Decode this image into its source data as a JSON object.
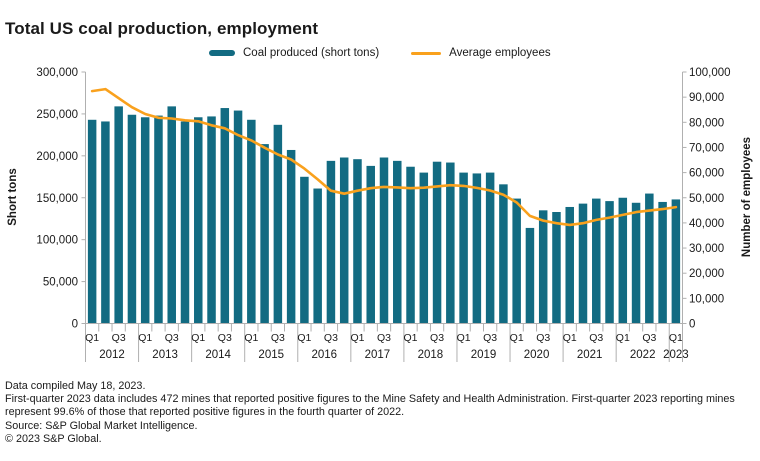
{
  "title": "Total US coal production, employment",
  "colors": {
    "bar": "#126b82",
    "line": "#f9a11d",
    "axis": "#b0b0b0",
    "text": "#1a1a1a"
  },
  "chart_data": {
    "type": "bar",
    "title": "Total US coal production, employment",
    "ylabel_left": "Short tons",
    "ylabel_right": "Number of employees",
    "left_ylim": [
      0,
      300000
    ],
    "right_ylim": [
      0,
      100000
    ],
    "grid": false,
    "legend_position": "top",
    "left_axis_ticks": [
      "0",
      "50,000",
      "100,000",
      "150,000",
      "200,000",
      "250,000",
      "300,000"
    ],
    "right_axis_ticks": [
      "0",
      "10,000",
      "20,000",
      "30,000",
      "40,000",
      "50,000",
      "60,000",
      "70,000",
      "80,000",
      "90,000",
      "100,000"
    ],
    "years": [
      {
        "label": "2012",
        "count": 4,
        "quarters_shown": [
          "Q1",
          "Q3"
        ]
      },
      {
        "label": "2013",
        "count": 4,
        "quarters_shown": [
          "Q1",
          "Q3"
        ]
      },
      {
        "label": "2014",
        "count": 4,
        "quarters_shown": [
          "Q1",
          "Q3"
        ]
      },
      {
        "label": "2015",
        "count": 4,
        "quarters_shown": [
          "Q1",
          "Q3"
        ]
      },
      {
        "label": "2016",
        "count": 4,
        "quarters_shown": [
          "Q1",
          "Q3"
        ]
      },
      {
        "label": "2017",
        "count": 4,
        "quarters_shown": [
          "Q1",
          "Q3"
        ]
      },
      {
        "label": "2018",
        "count": 4,
        "quarters_shown": [
          "Q1",
          "Q3"
        ]
      },
      {
        "label": "2019",
        "count": 4,
        "quarters_shown": [
          "Q1",
          "Q3"
        ]
      },
      {
        "label": "2020",
        "count": 4,
        "quarters_shown": [
          "Q1",
          "Q3"
        ]
      },
      {
        "label": "2021",
        "count": 4,
        "quarters_shown": [
          "Q1",
          "Q3"
        ]
      },
      {
        "label": "2022",
        "count": 4,
        "quarters_shown": [
          "Q1",
          "Q3"
        ]
      },
      {
        "label": "2023",
        "count": 1,
        "quarters_shown": [
          "Q1"
        ]
      }
    ],
    "x": [
      "2012 Q1",
      "2012 Q2",
      "2012 Q3",
      "2012 Q4",
      "2013 Q1",
      "2013 Q2",
      "2013 Q3",
      "2013 Q4",
      "2014 Q1",
      "2014 Q2",
      "2014 Q3",
      "2014 Q4",
      "2015 Q1",
      "2015 Q2",
      "2015 Q3",
      "2015 Q4",
      "2016 Q1",
      "2016 Q2",
      "2016 Q3",
      "2016 Q4",
      "2017 Q1",
      "2017 Q2",
      "2017 Q3",
      "2017 Q4",
      "2018 Q1",
      "2018 Q2",
      "2018 Q3",
      "2018 Q4",
      "2019 Q1",
      "2019 Q2",
      "2019 Q3",
      "2019 Q4",
      "2020 Q1",
      "2020 Q2",
      "2020 Q3",
      "2020 Q4",
      "2021 Q1",
      "2021 Q2",
      "2021 Q3",
      "2021 Q4",
      "2022 Q1",
      "2022 Q2",
      "2022 Q3",
      "2022 Q4",
      "2023 Q1"
    ],
    "series": [
      {
        "name": "Coal produced (short tons)",
        "kind": "bar",
        "axis": "left",
        "values": [
          243000,
          241000,
          259000,
          249000,
          246000,
          248000,
          259000,
          241000,
          246000,
          247000,
          257000,
          254000,
          243000,
          214000,
          237000,
          207000,
          175000,
          161000,
          194000,
          198000,
          196000,
          188000,
          198000,
          194000,
          187000,
          180000,
          193000,
          192000,
          180000,
          179000,
          180000,
          166000,
          149000,
          114000,
          135000,
          133000,
          139000,
          143000,
          149000,
          146000,
          150000,
          144000,
          155000,
          145000,
          148000
        ]
      },
      {
        "name": "Average employees",
        "kind": "line",
        "axis": "right",
        "values": [
          92400,
          93200,
          89600,
          86000,
          83300,
          81800,
          81500,
          80800,
          80400,
          78800,
          77600,
          74900,
          72800,
          69900,
          67200,
          65200,
          61600,
          57300,
          52800,
          51600,
          52800,
          53800,
          54300,
          54100,
          53800,
          54000,
          54500,
          55000,
          54700,
          53900,
          52900,
          51200,
          48100,
          42800,
          40900,
          39900,
          39200,
          39900,
          41200,
          42100,
          43200,
          44300,
          44900,
          45500,
          46300
        ]
      }
    ]
  },
  "notes": {
    "lines": [
      "Data compiled May 18, 2023.",
      "First-quarter 2023 data includes 472 mines that reported positive figures to the Mine Safety and Health Administration. First-quarter 2023 reporting mines represent 99.6% of those that reported positive figures in the fourth quarter of 2022.",
      "Source: S&P Global Market Intelligence.",
      "© 2023 S&P Global."
    ]
  }
}
